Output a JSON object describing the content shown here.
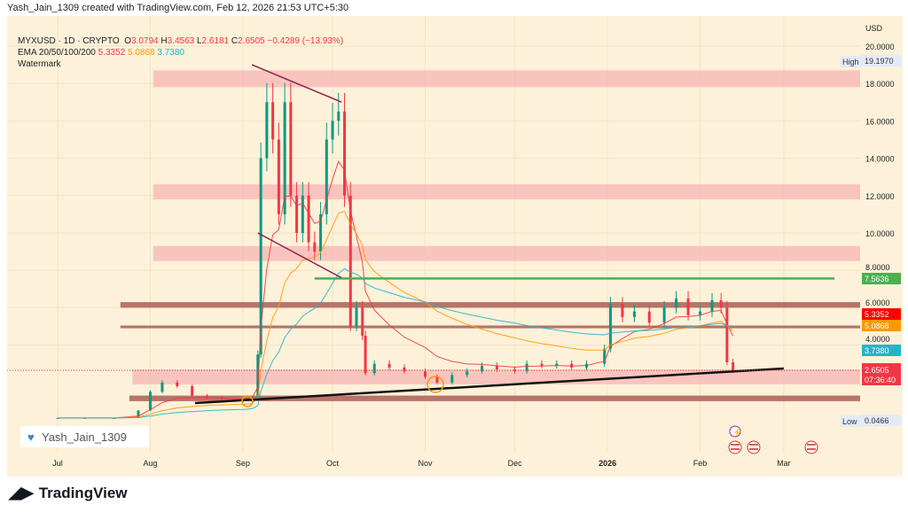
{
  "attribution": "Yash_Jain_1309 created with TradingView.com, Feb 12, 2026 21:53 UTC+5:30",
  "legend": {
    "symbol": "MYXUSD · 1D · CRYPTO",
    "o_label": "O",
    "o": "3.0794",
    "h_label": "H",
    "h": "3.4563",
    "l_label": "L",
    "l": "2.6181",
    "c_label": "C",
    "c": "2.6505",
    "change": "−0.4289 (−13.93%)",
    "ema_label": "EMA 20/50/100/200",
    "ema20": "5.3352",
    "ema50": "5.0868",
    "ema100": "3.7380",
    "watermark_label": "Watermark"
  },
  "currency": "USD",
  "watermark_text": "Yash_Jain_1309",
  "brand": "TradingView",
  "colors": {
    "bg": "#fdf1d9",
    "up": "#089981",
    "down": "#f23645",
    "ema20": "#f23645",
    "ema50": "#ff9800",
    "ema100": "#22b5c9",
    "zone_pink": "#f8b4b4",
    "zone_brown": "#b87468",
    "green_line": "#4caf50",
    "trend": "#111111",
    "channel": "#8e1e4e"
  },
  "y_ticks": [
    "20.0000",
    "18.0000",
    "16.0000",
    "14.0000",
    "12.0000",
    "10.0000",
    "8.0000",
    "6.0000",
    "4.0000"
  ],
  "x_ticks": [
    "Jul",
    "Aug",
    "Sep",
    "Oct",
    "Nov",
    "Dec",
    "2026",
    "Feb",
    "Mar"
  ],
  "price_tags": {
    "high_label": "High",
    "high": "19.1970",
    "green": "7.5636",
    "ema20": "5.3352",
    "ema50": "5.0868",
    "ema100": "3.7380",
    "last": "2.6505",
    "countdown": "07:36:40",
    "low_label": "Low",
    "low": "0.0466"
  },
  "chart_data": {
    "type": "candlestick",
    "ylim": [
      0,
      21
    ],
    "xlim": [
      "2025-06-10",
      "2026-03-18"
    ],
    "closes": [
      [
        "2025-07-01",
        0.1
      ],
      [
        "2025-07-10",
        0.1
      ],
      [
        "2025-07-20",
        0.1
      ],
      [
        "2025-07-28",
        0.5
      ],
      [
        "2025-08-01",
        1.5
      ],
      [
        "2025-08-05",
        2.0
      ],
      [
        "2025-08-10",
        1.8
      ],
      [
        "2025-08-15",
        1.3
      ],
      [
        "2025-08-20",
        1.2
      ],
      [
        "2025-08-25",
        1.1
      ],
      [
        "2025-09-01",
        1.0
      ],
      [
        "2025-09-04",
        1.2
      ],
      [
        "2025-09-06",
        3.5
      ],
      [
        "2025-09-07",
        14
      ],
      [
        "2025-09-09",
        17
      ],
      [
        "2025-09-11",
        15
      ],
      [
        "2025-09-13",
        11
      ],
      [
        "2025-09-15",
        17
      ],
      [
        "2025-09-17",
        12
      ],
      [
        "2025-09-19",
        10
      ],
      [
        "2025-09-21",
        12
      ],
      [
        "2025-09-23",
        9.5
      ],
      [
        "2025-09-25",
        9
      ],
      [
        "2025-09-27",
        11
      ],
      [
        "2025-09-29",
        15
      ],
      [
        "2025-10-01",
        16
      ],
      [
        "2025-10-03",
        16.5
      ],
      [
        "2025-10-05",
        12
      ],
      [
        "2025-10-07",
        5
      ],
      [
        "2025-10-09",
        6
      ],
      [
        "2025-10-11",
        4.5
      ],
      [
        "2025-10-12",
        2.5
      ],
      [
        "2025-10-15",
        3.0
      ],
      [
        "2025-10-20",
        2.8
      ],
      [
        "2025-10-25",
        2.6
      ],
      [
        "2025-11-01",
        2.3
      ],
      [
        "2025-11-05",
        2.0
      ],
      [
        "2025-11-10",
        2.4
      ],
      [
        "2025-11-15",
        2.6
      ],
      [
        "2025-11-20",
        2.9
      ],
      [
        "2025-11-25",
        2.7
      ],
      [
        "2025-12-01",
        2.6
      ],
      [
        "2025-12-05",
        3.0
      ],
      [
        "2025-12-10",
        2.9
      ],
      [
        "2025-12-15",
        3.0
      ],
      [
        "2025-12-20",
        2.8
      ],
      [
        "2025-12-25",
        3.0
      ],
      [
        "2025-12-31",
        3.8
      ],
      [
        "2026-01-02",
        6.2
      ],
      [
        "2026-01-06",
        5.5
      ],
      [
        "2026-01-10",
        5.8
      ],
      [
        "2026-01-15",
        5.2
      ],
      [
        "2026-01-20",
        6.0
      ],
      [
        "2026-01-24",
        6.5
      ],
      [
        "2026-01-28",
        5.6
      ],
      [
        "2026-02-01",
        5.8
      ],
      [
        "2026-02-05",
        6.4
      ],
      [
        "2026-02-08",
        6.0
      ],
      [
        "2026-02-10",
        3.08
      ],
      [
        "2026-02-12",
        2.65
      ]
    ],
    "zones": [
      {
        "kind": "pink",
        "from": 17.8,
        "to": 18.7,
        "start": "2025-08-02"
      },
      {
        "kind": "pink",
        "from": 11.8,
        "to": 12.6,
        "start": "2025-08-02"
      },
      {
        "kind": "pink",
        "from": 8.5,
        "to": 9.3,
        "start": "2025-08-02"
      },
      {
        "kind": "pink",
        "from": 1.9,
        "to": 2.7,
        "start": "2025-07-26"
      },
      {
        "kind": "brown",
        "from": 6.0,
        "to": 6.3,
        "start": "2025-07-22"
      },
      {
        "kind": "brown",
        "from": 4.9,
        "to": 5.05,
        "start": "2025-07-22"
      },
      {
        "kind": "brown",
        "from": 1.0,
        "to": 1.3,
        "start": "2025-07-25"
      }
    ],
    "lines": [
      {
        "kind": "green",
        "y1": 7.5636,
        "y2": 7.5636,
        "d1": "2025-09-25",
        "d2": "2026-03-18"
      },
      {
        "kind": "trend",
        "y1": 0.9,
        "y2": 2.75,
        "d1": "2025-08-16",
        "d2": "2026-03-01"
      },
      {
        "kind": "channel",
        "y1": 19.0,
        "y2": 17.0,
        "d1": "2025-09-04",
        "d2": "2025-10-04"
      },
      {
        "kind": "channel",
        "y1": 10.0,
        "y2": 7.6,
        "d1": "2025-09-06",
        "d2": "2025-10-04"
      }
    ]
  }
}
